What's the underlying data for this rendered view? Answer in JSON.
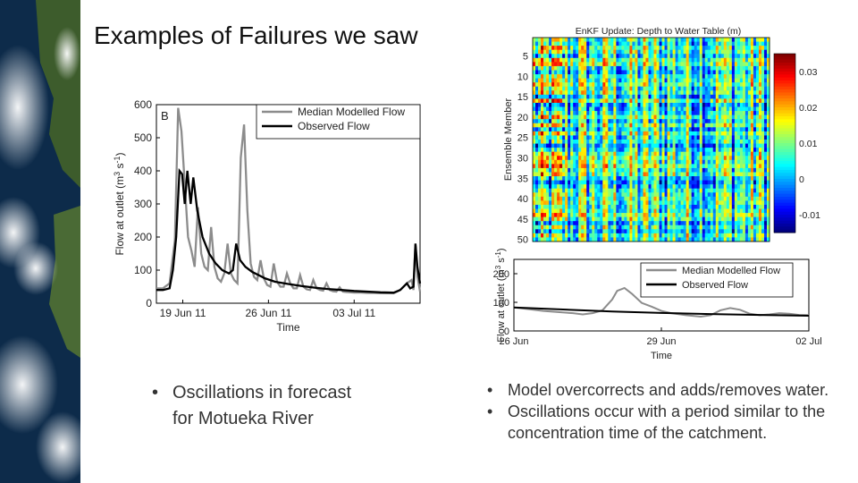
{
  "slide": {
    "title": "Examples of Failures we saw",
    "left_bullets": [
      "Oscillations in forecast for Motueka River"
    ],
    "right_bullets": [
      "Model overcorrects and adds/removes water.",
      "Oscillations occur with a period similar to the concentration time of the catchment."
    ],
    "bullet_glyph": "•"
  },
  "colors": {
    "modelled": "#8c8c8c",
    "observed": "#000000",
    "background": "#ffffff"
  },
  "chart_data": [
    {
      "type": "line",
      "panel_label": "B",
      "xlabel": "Time",
      "ylabel_main": "Flow at outlet (m",
      "ylabel_sup1": "3",
      "ylabel_mid": " s",
      "ylabel_sup2": "-1",
      "ylabel_end": ")",
      "ylim": [
        0,
        600
      ],
      "xlim": [
        0,
        40
      ],
      "yticks": [
        0,
        100,
        200,
        300,
        400,
        500,
        600
      ],
      "xtick_labels": [
        {
          "x": 4,
          "label": "19 Jun 11"
        },
        {
          "x": 17,
          "label": "26 Jun 11"
        },
        {
          "x": 30,
          "label": "03 Jul 11"
        }
      ],
      "legend_position": "top-right",
      "series": [
        {
          "name": "Median Modelled Flow",
          "color": "#8c8c8c",
          "x": [
            0,
            1,
            2,
            2.8,
            3.3,
            3.8,
            4.3,
            4.8,
            5.3,
            5.8,
            6.3,
            6.8,
            7.3,
            7.8,
            8.3,
            8.8,
            9.3,
            9.8,
            10.3,
            10.8,
            11.3,
            11.8,
            12.3,
            12.8,
            13.3,
            13.8,
            14.3,
            14.8,
            15.3,
            15.8,
            16.3,
            16.8,
            17.3,
            17.8,
            18.3,
            18.8,
            19.3,
            19.8,
            20.3,
            20.8,
            21.3,
            21.8,
            22.3,
            22.8,
            23.3,
            23.8,
            24.3,
            24.8,
            25.3,
            25.8,
            26.3,
            26.8,
            27.3,
            27.8,
            28.3,
            28.8,
            29.3,
            30,
            31,
            32,
            33,
            34,
            35,
            36,
            37,
            38,
            38.7,
            39,
            39.3,
            39.6,
            40
          ],
          "y": [
            45,
            45,
            60,
            190,
            590,
            520,
            360,
            200,
            160,
            110,
            290,
            150,
            110,
            100,
            230,
            110,
            75,
            65,
            90,
            180,
            90,
            70,
            60,
            440,
            540,
            280,
            120,
            80,
            70,
            130,
            75,
            55,
            50,
            120,
            65,
            50,
            50,
            90,
            60,
            45,
            45,
            85,
            50,
            42,
            40,
            70,
            45,
            40,
            38,
            60,
            40,
            36,
            35,
            48,
            35,
            34,
            33,
            32,
            32,
            31,
            31,
            30,
            30,
            30,
            40,
            60,
            70,
            40,
            180,
            80,
            35
          ]
        },
        {
          "name": "Observed Flow",
          "color": "#000000",
          "x": [
            0,
            1,
            2,
            2.5,
            3,
            3.5,
            3.9,
            4.3,
            4.7,
            5.2,
            5.6,
            6.2,
            7,
            8,
            9,
            10,
            11,
            11.6,
            12.1,
            12.7,
            13.5,
            14.5,
            15.5,
            16.5,
            18,
            20,
            22,
            24,
            26,
            28,
            30,
            32,
            34,
            36,
            37,
            38,
            38.5,
            39,
            39.3,
            39.6,
            40
          ],
          "y": [
            40,
            40,
            45,
            100,
            200,
            400,
            390,
            300,
            400,
            300,
            380,
            280,
            200,
            150,
            120,
            100,
            90,
            100,
            180,
            130,
            110,
            95,
            85,
            75,
            65,
            58,
            52,
            47,
            43,
            40,
            37,
            35,
            33,
            32,
            40,
            60,
            45,
            50,
            180,
            110,
            60
          ]
        }
      ]
    },
    {
      "type": "heatmap",
      "title": "EnKF Update: Depth to Water Table (m)",
      "ylabel": "Ensemble Member",
      "yticks": [
        5,
        10,
        15,
        20,
        25,
        30,
        35,
        40,
        45,
        50
      ],
      "rows": 50,
      "cols": 88,
      "colorbar": {
        "min": -0.015,
        "max": 0.035,
        "ticks": [
          0.03,
          0.02,
          0.01,
          0,
          -0.01
        ],
        "tick_labels": [
          "0.03",
          "0.02",
          "0.01",
          "0",
          "-0.01"
        ]
      },
      "colormap": "jet"
    },
    {
      "type": "line",
      "xlabel": "Time",
      "ylabel_main": "Flow at outlet (m",
      "ylabel_sup1": "3",
      "ylabel_mid": " s",
      "ylabel_sup2": "-1",
      "ylabel_end": ")",
      "ylim": [
        0,
        250
      ],
      "xlim": [
        0,
        6
      ],
      "yticks": [
        0,
        100,
        200
      ],
      "xtick_labels": [
        {
          "x": 0,
          "label": "26 Jun"
        },
        {
          "x": 3,
          "label": "29 Jun"
        },
        {
          "x": 6,
          "label": "02 Jul"
        }
      ],
      "legend_position": "top-right",
      "series": [
        {
          "name": "Median Modelled Flow",
          "color": "#8c8c8c",
          "x": [
            0,
            0.3,
            0.6,
            0.9,
            1.2,
            1.4,
            1.6,
            1.8,
            2.0,
            2.1,
            2.25,
            2.4,
            2.6,
            2.8,
            3.0,
            3.2,
            3.5,
            3.8,
            4.0,
            4.2,
            4.4,
            4.6,
            4.8,
            5.0,
            5.2,
            5.4,
            5.6,
            5.8,
            6.0
          ],
          "y": [
            82,
            76,
            70,
            66,
            62,
            58,
            62,
            72,
            110,
            140,
            150,
            130,
            98,
            85,
            70,
            62,
            55,
            50,
            55,
            72,
            80,
            74,
            60,
            55,
            58,
            62,
            60,
            56,
            55
          ]
        },
        {
          "name": "Observed Flow",
          "color": "#000000",
          "x": [
            0,
            1,
            2,
            3,
            4,
            5,
            6
          ],
          "y": [
            82,
            75,
            68,
            63,
            59,
            56,
            53
          ]
        }
      ]
    }
  ]
}
